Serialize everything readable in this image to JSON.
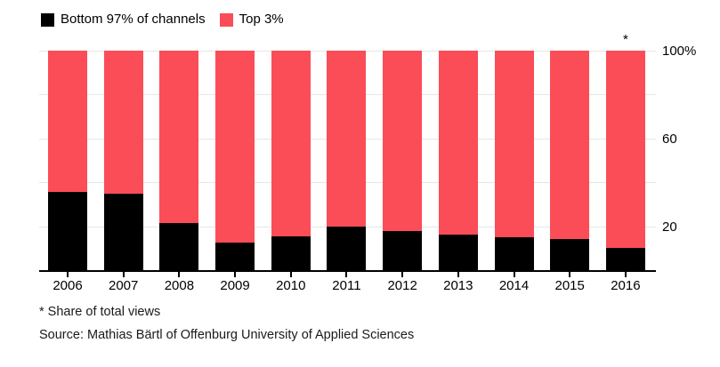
{
  "colors": {
    "bottom97": "#000000",
    "top3": "#FB4D57",
    "grid": "#E6E6E6",
    "axis": "#000000",
    "text": "#000000"
  },
  "chart_data": {
    "type": "bar",
    "stacked": true,
    "title": "",
    "xlabel": "",
    "ylabel": "",
    "categories": [
      "2006",
      "2007",
      "2008",
      "2009",
      "2010",
      "2011",
      "2012",
      "2013",
      "2014",
      "2015",
      "2016"
    ],
    "series": [
      {
        "name": "Bottom 97% of channels",
        "color": "#000000",
        "values": [
          35.5,
          34.7,
          21.4,
          12.6,
          15.3,
          20.0,
          18.0,
          16.0,
          15.1,
          14.3,
          10.0
        ]
      },
      {
        "name": "Top 3%",
        "color": "#FB4D57",
        "values": [
          64.5,
          65.3,
          78.6,
          87.4,
          84.7,
          80.0,
          82.0,
          84.0,
          84.9,
          85.7,
          90.0
        ]
      }
    ],
    "ylim": [
      0,
      100
    ],
    "y_ticks": [
      {
        "value": 100,
        "label": "100%"
      },
      {
        "value": 60,
        "label": "60"
      },
      {
        "value": 20,
        "label": "20"
      }
    ],
    "gridline_values": [
      20,
      40,
      60,
      80,
      100
    ],
    "grid": true,
    "legend_position": "top-left",
    "annotation": {
      "text": "*",
      "category": "2016",
      "position": "above-bar"
    }
  },
  "footnote": "* Share of total views",
  "source": "Source: Mathias Bärtl of Offenburg University of Applied Sciences"
}
